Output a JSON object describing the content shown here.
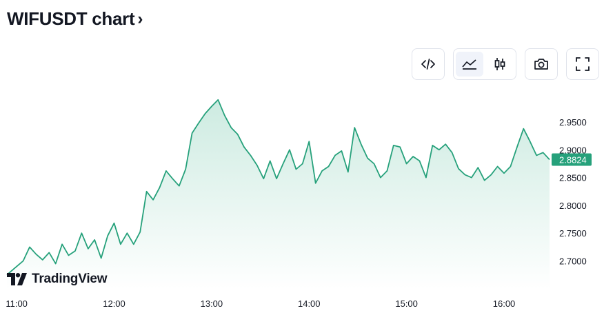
{
  "header": {
    "title": "WIFUSDT chart",
    "chevron": "›"
  },
  "toolbar": {
    "buttons": [
      {
        "name": "embed-code",
        "icon": "code-icon"
      },
      {
        "name": "line-chart",
        "icon": "area-chart-icon",
        "active": true
      },
      {
        "name": "candle-chart",
        "icon": "candlestick-icon"
      },
      {
        "name": "snapshot",
        "icon": "camera-icon"
      },
      {
        "name": "fullscreen",
        "icon": "fullscreen-icon"
      }
    ]
  },
  "brand": {
    "name": "TradingView"
  },
  "colors": {
    "line": "#26a17b",
    "fill_top": "#cdebe1",
    "fill_bottom": "#ffffff",
    "last_price_bg": "#26a17b"
  },
  "chart_data": {
    "type": "area",
    "title": "",
    "xlabel": "",
    "ylabel": "",
    "x_ticks": [
      "11:00",
      "12:00",
      "13:00",
      "14:00",
      "15:00",
      "16:00"
    ],
    "y_ticks": [
      "2.9500",
      "2.9000",
      "2.8500",
      "2.8000",
      "2.7500",
      "2.7000"
    ],
    "ylim": [
      2.66,
      3.0
    ],
    "last_price": 2.8824,
    "last_price_label": "2.8824",
    "grid": false,
    "series": [
      {
        "x": [
          "10:54",
          "11:00",
          "11:04",
          "11:08",
          "11:12",
          "11:16",
          "11:20",
          "11:24",
          "11:28",
          "11:32",
          "11:36",
          "11:40",
          "11:44",
          "11:48",
          "11:52",
          "11:56",
          "12:00",
          "12:04",
          "12:08",
          "12:12",
          "12:16",
          "12:20",
          "12:24",
          "12:28",
          "12:32",
          "12:36",
          "12:40",
          "12:44",
          "12:48",
          "12:52",
          "12:56",
          "13:00",
          "13:04",
          "13:08",
          "13:12",
          "13:16",
          "13:20",
          "13:24",
          "13:28",
          "13:32",
          "13:36",
          "13:40",
          "13:44",
          "13:48",
          "13:52",
          "13:56",
          "14:00",
          "14:04",
          "14:08",
          "14:12",
          "14:16",
          "14:20",
          "14:24",
          "14:28",
          "14:32",
          "14:36",
          "14:40",
          "14:44",
          "14:48",
          "14:52",
          "14:56",
          "15:00",
          "15:04",
          "15:08",
          "15:12",
          "15:16",
          "15:20",
          "15:24",
          "15:28",
          "15:32",
          "15:36",
          "15:40",
          "15:44",
          "15:48",
          "15:52",
          "15:56",
          "16:00",
          "16:04",
          "16:08",
          "16:12",
          "16:16",
          "16:20",
          "16:24",
          "16:28"
        ],
        "y": [
          2.675,
          2.69,
          2.7,
          2.725,
          2.712,
          2.702,
          2.715,
          2.695,
          2.73,
          2.71,
          2.718,
          2.75,
          2.722,
          2.738,
          2.705,
          2.745,
          2.768,
          2.73,
          2.75,
          2.73,
          2.752,
          2.825,
          2.81,
          2.832,
          2.862,
          2.848,
          2.835,
          2.865,
          2.93,
          2.948,
          2.965,
          2.978,
          2.99,
          2.962,
          2.94,
          2.928,
          2.905,
          2.89,
          2.872,
          2.848,
          2.88,
          2.848,
          2.875,
          2.9,
          2.865,
          2.875,
          2.915,
          2.84,
          2.862,
          2.87,
          2.89,
          2.898,
          2.86,
          2.94,
          2.91,
          2.885,
          2.875,
          2.85,
          2.862,
          2.908,
          2.905,
          2.875,
          2.888,
          2.88,
          2.85,
          2.908,
          2.9,
          2.91,
          2.895,
          2.866,
          2.855,
          2.85,
          2.868,
          2.845,
          2.855,
          2.87,
          2.858,
          2.87,
          2.905,
          2.938,
          2.915,
          2.89,
          2.895,
          2.8824
        ]
      }
    ]
  }
}
